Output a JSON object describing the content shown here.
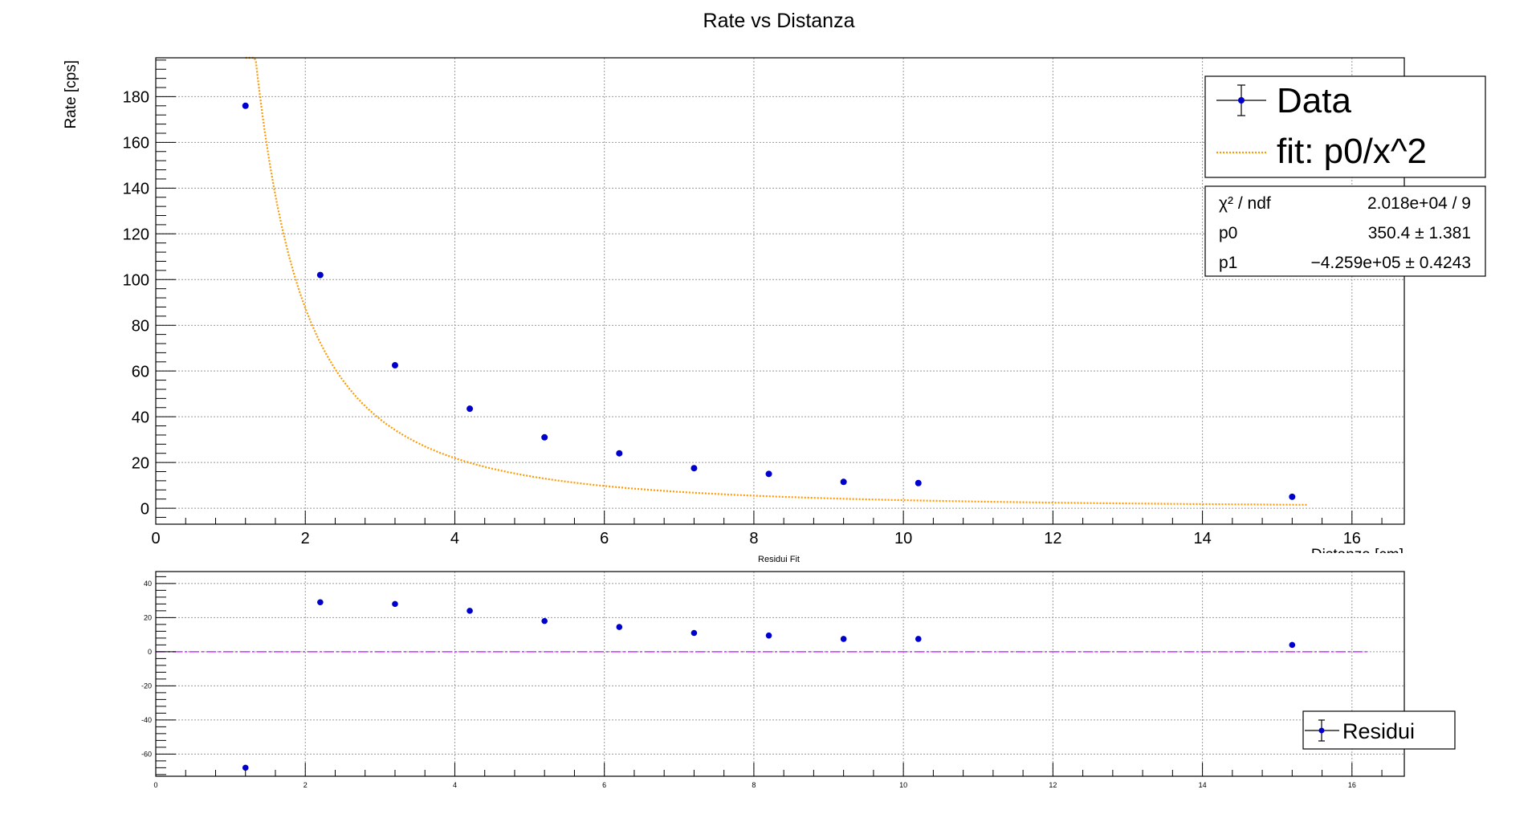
{
  "chart_data": [
    {
      "type": "scatter",
      "title": "Rate vs Distanza",
      "xlabel": "Distanza [cm]",
      "ylabel": "Rate [cps]",
      "xlim": [
        0,
        16.7
      ],
      "ylim": [
        -7,
        197
      ],
      "x_ticks": [
        0,
        2,
        4,
        6,
        8,
        10,
        12,
        14,
        16
      ],
      "y_ticks": [
        0,
        20,
        40,
        60,
        80,
        100,
        120,
        140,
        160,
        180
      ],
      "grid": true,
      "series": [
        {
          "name": "Data",
          "color": "#0000cc",
          "x": [
            1.2,
            2.2,
            3.2,
            4.2,
            5.2,
            6.2,
            7.2,
            8.2,
            9.2,
            10.2,
            15.2
          ],
          "y": [
            176,
            102,
            62.5,
            43.5,
            31,
            24,
            17.5,
            15,
            11.5,
            11,
            5
          ]
        },
        {
          "name": "fit: p0/x^2",
          "color": "#ff9900",
          "style": "dotted",
          "function": "p0/x^2",
          "x_range": [
            1.2,
            15.4
          ],
          "p0": 350.4
        }
      ],
      "legend": {
        "placement": "top-right",
        "entries": [
          "Data",
          "fit: p0/x^2"
        ]
      },
      "stats": {
        "rows": [
          {
            "label": "χ² / ndf",
            "value": "2.018e+04 / 9"
          },
          {
            "label": "p0",
            "value": "350.4 ± 1.381"
          },
          {
            "label": "p1",
            "value": "−4.259e+05 ± 0.4243"
          }
        ]
      }
    },
    {
      "type": "scatter",
      "title": "Residui Fit",
      "xlim": [
        0,
        16.7
      ],
      "ylim": [
        -73,
        47
      ],
      "x_ticks": [
        0,
        2,
        4,
        6,
        8,
        10,
        12,
        14,
        16
      ],
      "y_ticks": [
        -60,
        -40,
        -20,
        0,
        20,
        40
      ],
      "grid": true,
      "zero_line_color": "#cc33ff",
      "series": [
        {
          "name": "Residui",
          "color": "#0000cc",
          "x": [
            1.2,
            2.2,
            3.2,
            4.2,
            5.2,
            6.2,
            7.2,
            8.2,
            9.2,
            10.2,
            15.2
          ],
          "y": [
            -68,
            29,
            28,
            24,
            18,
            14.5,
            11,
            9.5,
            7.5,
            7.5,
            4
          ]
        }
      ],
      "legend": {
        "placement": "bottom-right",
        "entries": [
          "Residui"
        ]
      }
    }
  ]
}
